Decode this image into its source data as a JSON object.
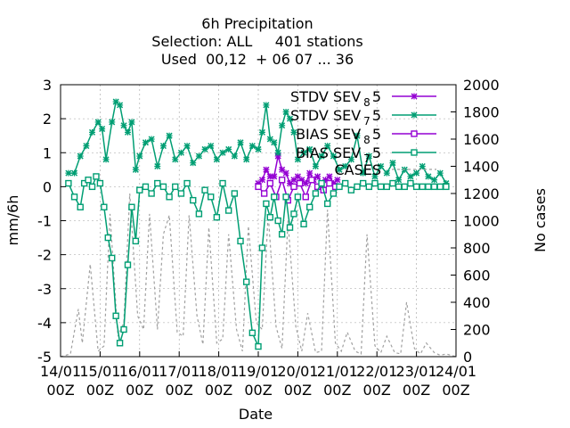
{
  "chart_data": {
    "type": "line",
    "title": [
      "6h Precipitation",
      "Selection: ALL     401 stations",
      "Used  00,12  + 06 07 ... 36"
    ],
    "xlabel": "Date",
    "ylabel": "mm/6h",
    "y2label": "No cases",
    "xlim": [
      0,
      10
    ],
    "ylim": [
      -5,
      3
    ],
    "y2lim": [
      0,
      2000
    ],
    "grid": true,
    "legend_position": "top-right",
    "x_tick_labels": [
      [
        "14/01",
        "00Z"
      ],
      [
        "15/01",
        "00Z"
      ],
      [
        "16/01",
        "00Z"
      ],
      [
        "17/01",
        "00Z"
      ],
      [
        "18/01",
        "00Z"
      ],
      [
        "19/01",
        "00Z"
      ],
      [
        "20/01",
        "00Z"
      ],
      [
        "21/01",
        "00Z"
      ],
      [
        "22/01",
        "00Z"
      ],
      [
        "23/01",
        "00Z"
      ],
      [
        "24/01",
        "00Z"
      ]
    ],
    "y_ticks": [
      -5,
      -4,
      -3,
      -2,
      -1,
      0,
      1,
      2,
      3
    ],
    "y2_ticks": [
      0,
      200,
      400,
      600,
      800,
      1000,
      1200,
      1400,
      1600,
      1800,
      2000
    ],
    "colors": {
      "purple": "#9400d3",
      "green": "#009e73",
      "gray": "#a0a0a0"
    },
    "series": [
      {
        "name": "STDV SEV",
        "sub": "8",
        "post": "5",
        "style": "line-x",
        "color": "#9400d3",
        "axis": "y",
        "x": [
          5.0,
          5.1,
          5.2,
          5.3,
          5.4,
          5.5,
          5.6,
          5.7,
          5.8,
          5.9,
          6.0,
          6.1,
          6.2,
          6.3,
          6.4,
          6.5,
          6.6,
          6.7,
          6.8,
          6.9,
          7.0
        ],
        "y": [
          0.1,
          0.2,
          0.5,
          0.3,
          0.3,
          0.9,
          0.5,
          0.4,
          0.1,
          0.2,
          0.3,
          0.2,
          0.1,
          0.4,
          0.2,
          0.3,
          0.1,
          0.2,
          0.3,
          0.1,
          0.2
        ]
      },
      {
        "name": "STDV SEV",
        "sub": "7",
        "post": "5",
        "style": "line-x",
        "color": "#009e73",
        "axis": "y",
        "x": [
          0.2,
          0.35,
          0.5,
          0.65,
          0.8,
          0.95,
          1.05,
          1.15,
          1.3,
          1.4,
          1.5,
          1.6,
          1.7,
          1.8,
          1.9,
          2.0,
          2.15,
          2.3,
          2.45,
          2.6,
          2.75,
          2.9,
          3.05,
          3.2,
          3.35,
          3.5,
          3.65,
          3.8,
          3.95,
          4.1,
          4.25,
          4.4,
          4.55,
          4.7,
          4.85,
          5.0,
          5.1,
          5.2,
          5.3,
          5.4,
          5.5,
          5.6,
          5.7,
          5.8,
          5.9,
          6.0,
          6.15,
          6.3,
          6.45,
          6.6,
          6.75,
          6.9,
          7.05,
          7.2,
          7.35,
          7.5,
          7.65,
          7.8,
          7.95,
          8.1,
          8.25,
          8.4,
          8.55,
          8.7,
          8.85,
          9.0,
          9.15,
          9.3,
          9.45,
          9.6,
          9.75
        ],
        "y": [
          0.4,
          0.4,
          0.9,
          1.2,
          1.6,
          1.9,
          1.7,
          0.8,
          1.9,
          2.5,
          2.4,
          1.8,
          1.6,
          1.9,
          0.5,
          0.9,
          1.3,
          1.4,
          0.6,
          1.2,
          1.5,
          0.8,
          1.0,
          1.2,
          0.7,
          0.9,
          1.1,
          1.2,
          0.8,
          1.0,
          1.1,
          0.9,
          1.3,
          0.8,
          1.2,
          1.1,
          1.6,
          2.4,
          1.4,
          1.3,
          1.0,
          1.8,
          2.2,
          2.0,
          1.6,
          0.8,
          1.0,
          1.1,
          0.6,
          0.9,
          1.2,
          0.9,
          0.5,
          0.6,
          0.8,
          1.5,
          0.4,
          0.9,
          0.3,
          0.6,
          0.4,
          0.7,
          0.2,
          0.5,
          0.3,
          0.4,
          0.6,
          0.3,
          0.2,
          0.4,
          0.1
        ]
      },
      {
        "name": "BIAS SEV",
        "sub": "8",
        "post": "5",
        "style": "line-square",
        "color": "#9400d3",
        "axis": "y",
        "x": [
          5.0,
          5.15,
          5.3,
          5.45,
          5.6,
          5.75,
          5.9,
          6.05,
          6.2,
          6.35,
          6.5,
          6.65,
          6.8,
          6.95
        ],
        "y": [
          0.0,
          -0.2,
          0.1,
          -0.3,
          0.2,
          -0.4,
          0.0,
          0.1,
          -0.3,
          0.2,
          0.0,
          -0.1,
          0.1,
          0.0
        ]
      },
      {
        "name": "BIAS SEV",
        "sub": "7",
        "post": "5",
        "style": "line-square",
        "color": "#009e73",
        "axis": "y",
        "x": [
          0.2,
          0.35,
          0.5,
          0.6,
          0.7,
          0.8,
          0.9,
          1.0,
          1.1,
          1.2,
          1.3,
          1.4,
          1.5,
          1.6,
          1.7,
          1.8,
          1.9,
          2.0,
          2.15,
          2.3,
          2.45,
          2.6,
          2.75,
          2.9,
          3.05,
          3.2,
          3.35,
          3.5,
          3.65,
          3.8,
          3.95,
          4.1,
          4.25,
          4.4,
          4.55,
          4.7,
          4.85,
          5.0,
          5.1,
          5.2,
          5.3,
          5.4,
          5.5,
          5.6,
          5.7,
          5.8,
          5.9,
          6.0,
          6.15,
          6.3,
          6.45,
          6.6,
          6.75,
          6.9,
          7.05,
          7.2,
          7.35,
          7.5,
          7.65,
          7.8,
          7.95,
          8.1,
          8.25,
          8.4,
          8.55,
          8.7,
          8.85,
          9.0,
          9.15,
          9.3,
          9.45,
          9.6,
          9.75
        ],
        "y": [
          0.1,
          -0.3,
          -0.6,
          0.1,
          0.2,
          0.0,
          0.3,
          0.1,
          -0.6,
          -1.5,
          -2.1,
          -3.8,
          -4.6,
          -4.2,
          -2.3,
          -0.6,
          -1.6,
          -0.1,
          0.0,
          -0.2,
          0.1,
          0.0,
          -0.3,
          0.0,
          -0.2,
          0.1,
          -0.4,
          -0.8,
          -0.1,
          -0.3,
          -0.9,
          0.1,
          -0.7,
          -0.2,
          -1.6,
          -2.8,
          -4.3,
          -4.7,
          -1.8,
          -0.5,
          -0.9,
          -0.3,
          -1.0,
          -1.4,
          -0.3,
          -1.2,
          -0.8,
          -0.3,
          -1.1,
          -0.6,
          -0.2,
          0.1,
          -0.5,
          -0.2,
          0.0,
          0.1,
          -0.1,
          0.0,
          0.1,
          0.0,
          0.1,
          0.0,
          0.0,
          0.1,
          0.0,
          0.0,
          0.1,
          0.0,
          0.0,
          0.0,
          0.0,
          0.0,
          0.0
        ]
      },
      {
        "name": "CASES",
        "sub": "",
        "post": "",
        "style": "dashed",
        "color": "#a0a0a0",
        "axis": "y2",
        "x": [
          0.0,
          0.25,
          0.45,
          0.55,
          0.75,
          0.95,
          1.1,
          1.25,
          1.45,
          1.6,
          1.75,
          1.95,
          2.1,
          2.25,
          2.45,
          2.6,
          2.75,
          2.95,
          3.1,
          3.25,
          3.45,
          3.6,
          3.75,
          3.95,
          4.1,
          4.25,
          4.45,
          4.6,
          4.75,
          4.95,
          5.1,
          5.25,
          5.45,
          5.6,
          5.75,
          5.95,
          6.1,
          6.25,
          6.45,
          6.6,
          6.75,
          6.95,
          7.1,
          7.25,
          7.45,
          7.6,
          7.75,
          7.95,
          8.1,
          8.25,
          8.45,
          8.6,
          8.75,
          8.95,
          9.1,
          9.25,
          9.45,
          9.6,
          9.75,
          10.0
        ],
        "y": [
          0,
          20,
          350,
          100,
          680,
          40,
          80,
          1050,
          150,
          250,
          1200,
          300,
          200,
          1050,
          200,
          900,
          1040,
          180,
          150,
          1040,
          300,
          90,
          950,
          100,
          130,
          900,
          200,
          40,
          960,
          250,
          200,
          1050,
          220,
          60,
          1000,
          220,
          40,
          320,
          30,
          40,
          1080,
          100,
          40,
          180,
          40,
          20,
          900,
          80,
          30,
          150,
          30,
          20,
          400,
          60,
          20,
          100,
          30,
          10,
          20,
          0
        ]
      }
    ]
  }
}
